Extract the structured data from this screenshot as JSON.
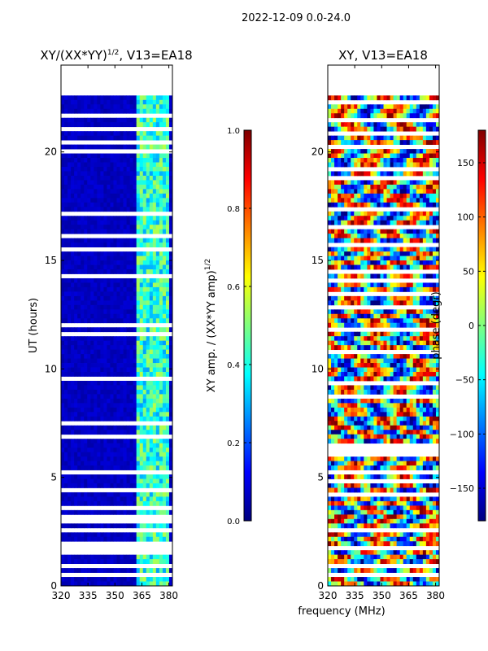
{
  "figure": {
    "suptitle": "2022-12-09 0.0-24.0",
    "shared_xlabel": "frequency (MHz)"
  },
  "colors": {
    "jet_stops": [
      "#00007f",
      "#0000ff",
      "#007fff",
      "#00ffff",
      "#7fff7f",
      "#ffff00",
      "#ff7f00",
      "#ff0000",
      "#7f0000"
    ],
    "background": "#ffffff"
  },
  "chart_data": [
    {
      "type": "heatmap",
      "title_main": "XY/(XX*YY)",
      "title_sup": "1/2",
      "title_tail": ", V13=EA18",
      "ylabel": "UT (hours)",
      "xlabel": "",
      "xlim": [
        320,
        382
      ],
      "ylim": [
        0,
        24
      ],
      "xticks": [
        320,
        335,
        350,
        365,
        380
      ],
      "yticks": [
        0,
        5,
        10,
        15,
        20
      ],
      "data_extent_hours": [
        0,
        22.6
      ],
      "bright_band_mhz": [
        362,
        380
      ],
      "colorbar": {
        "label_main": "XY amp. / (XX*YY amp)",
        "label_sup": "1/2",
        "range": [
          0.0,
          1.0
        ],
        "ticks": [
          "0.0",
          "0.2",
          "0.4",
          "0.6",
          "0.8",
          "1.0"
        ]
      }
    },
    {
      "type": "heatmap",
      "title_main": "XY, V13=EA18",
      "ylabel": "",
      "xlabel": "frequency (MHz)",
      "xlim": [
        320,
        382
      ],
      "ylim": [
        0,
        24
      ],
      "xticks": [
        320,
        335,
        350,
        365,
        380
      ],
      "yticks": [
        0,
        5,
        10,
        15,
        20
      ],
      "data_extent_hours": [
        0,
        22.6
      ],
      "colorbar": {
        "label_main": "phase (degr)",
        "range": [
          -180,
          180
        ],
        "ticks": [
          "150",
          "100",
          "50",
          "0",
          "−50",
          "−100",
          "−150"
        ],
        "tick_values": [
          150,
          100,
          50,
          0,
          -50,
          -100,
          -150
        ]
      }
    }
  ]
}
